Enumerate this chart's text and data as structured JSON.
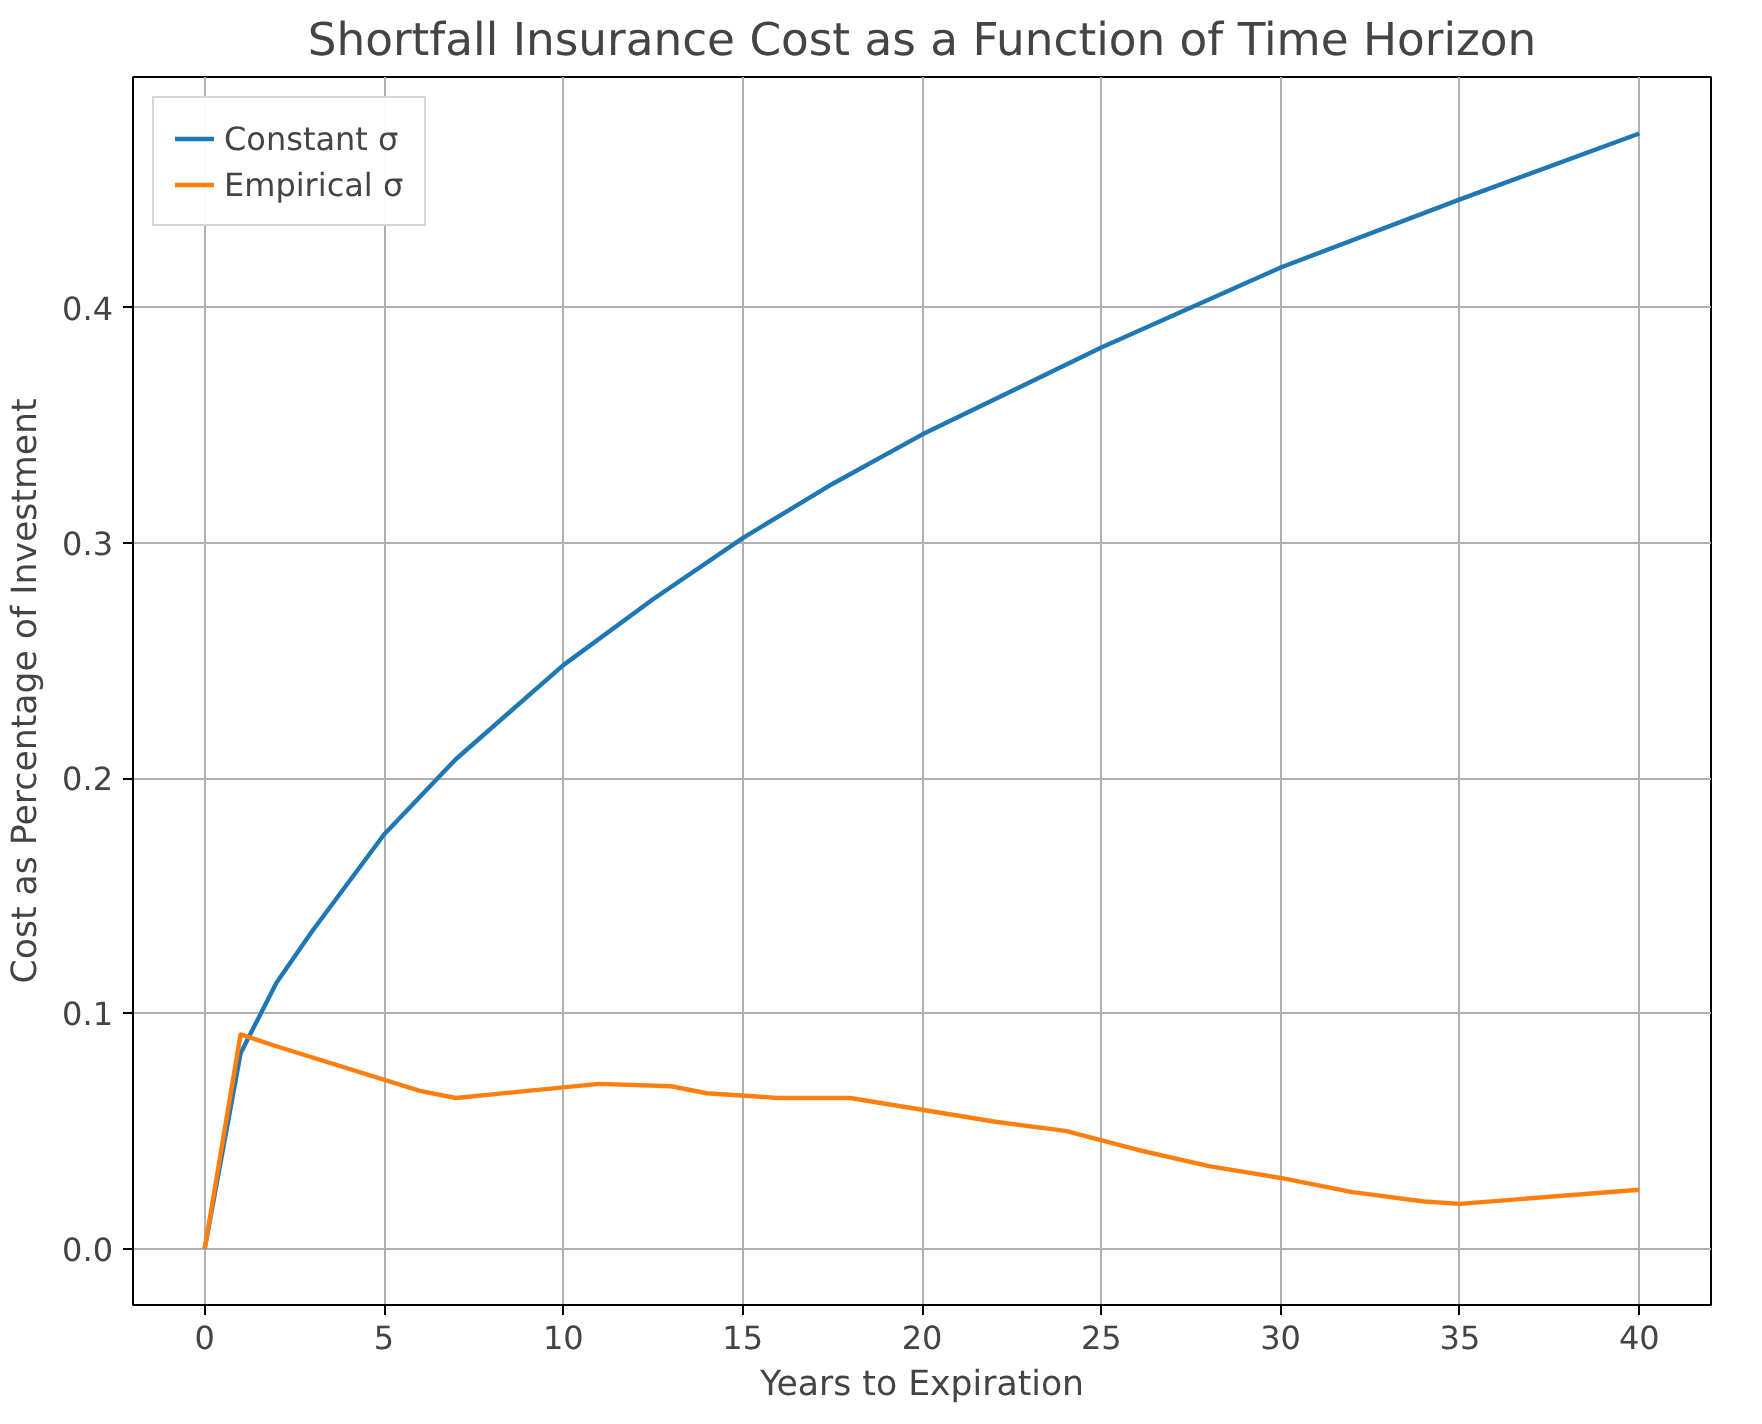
{
  "chart_data": {
    "type": "line",
    "title": "Shortfall Insurance Cost as a Function of Time Horizon",
    "xlabel": "Years to Expiration",
    "ylabel": "Cost as Percentage of Investment",
    "xlim": [
      -2,
      42
    ],
    "xticks": [
      0,
      5,
      10,
      15,
      20,
      25,
      30,
      35,
      40
    ],
    "ylim": [
      -0.024,
      0.498
    ],
    "yticks": [
      {
        "value": 0,
        "label": "0.0"
      },
      {
        "value": 0.1,
        "label": "0.1"
      },
      {
        "value": 0.2,
        "label": "0.2"
      },
      {
        "value": 0.3,
        "label": "0.3"
      },
      {
        "value": 0.4,
        "label": "0.4"
      }
    ],
    "grid": true,
    "legend": "top left",
    "line_style": "solid",
    "marker": "none",
    "series": [
      {
        "name": "Constant σ",
        "color": "#1f77b4",
        "x": [
          0,
          1,
          2,
          3,
          5,
          7,
          10,
          12.5,
          15,
          17.5,
          20,
          25,
          30,
          35,
          40
        ],
        "values": [
          0,
          0.083,
          0.113,
          0.135,
          0.176,
          0.208,
          0.248,
          0.276,
          0.302,
          0.325,
          0.346,
          0.383,
          0.417,
          0.446,
          0.474
        ]
      },
      {
        "name": "Empirical σ",
        "color": "#ff7f0e",
        "x": [
          0,
          1,
          2,
          6,
          7,
          9,
          11,
          13,
          14,
          16,
          18,
          20,
          22,
          24,
          26,
          28,
          30,
          32,
          34,
          35,
          40
        ],
        "values": [
          0,
          0.091,
          0.086,
          0.067,
          0.064,
          0.067,
          0.07,
          0.069,
          0.066,
          0.064,
          0.064,
          0.059,
          0.054,
          0.05,
          0.042,
          0.035,
          0.03,
          0.024,
          0.02,
          0.019,
          0.025
        ]
      }
    ]
  }
}
